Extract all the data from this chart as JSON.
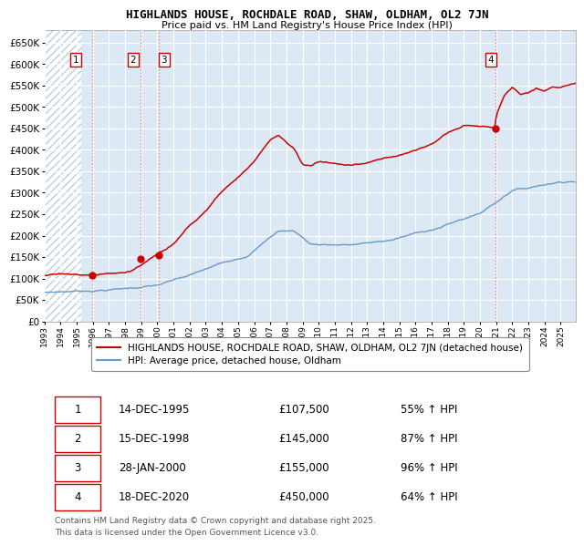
{
  "title": "HIGHLANDS HOUSE, ROCHDALE ROAD, SHAW, OLDHAM, OL2 7JN",
  "subtitle": "Price paid vs. HM Land Registry's House Price Index (HPI)",
  "background_color": "#dce9f5",
  "plot_bg_color": "#dce9f5",
  "grid_color": "#ffffff",
  "ylim": [
    0,
    680000
  ],
  "yticks": [
    0,
    50000,
    100000,
    150000,
    200000,
    250000,
    300000,
    350000,
    400000,
    450000,
    500000,
    550000,
    600000,
    650000
  ],
  "xlim_start": 1993.0,
  "xlim_end": 2025.92,
  "sale_line_color": "#cc0000",
  "hpi_line_color": "#6699cc",
  "sale_marker_color": "#cc0000",
  "sale_marker_size": 6,
  "vline_color": "#e88080",
  "purchases": [
    {
      "label": "1",
      "date_num": 1995.958,
      "price": 107500
    },
    {
      "label": "2",
      "date_num": 1998.958,
      "price": 145000
    },
    {
      "label": "3",
      "date_num": 2000.075,
      "price": 155000
    },
    {
      "label": "4",
      "date_num": 2020.958,
      "price": 450000
    }
  ],
  "legend_label_sale": "HIGHLANDS HOUSE, ROCHDALE ROAD, SHAW, OLDHAM, OL2 7JN (detached house)",
  "legend_label_hpi": "HPI: Average price, detached house, Oldham",
  "footnote": "Contains HM Land Registry data © Crown copyright and database right 2025.\nThis data is licensed under the Open Government Licence v3.0.",
  "table_rows": [
    [
      "1",
      "14-DEC-1995",
      "£107,500",
      "55% ↑ HPI"
    ],
    [
      "2",
      "15-DEC-1998",
      "£145,000",
      "87% ↑ HPI"
    ],
    [
      "3",
      "28-JAN-2000",
      "£155,000",
      "96% ↑ HPI"
    ],
    [
      "4",
      "18-DEC-2020",
      "£450,000",
      "64% ↑ HPI"
    ]
  ]
}
